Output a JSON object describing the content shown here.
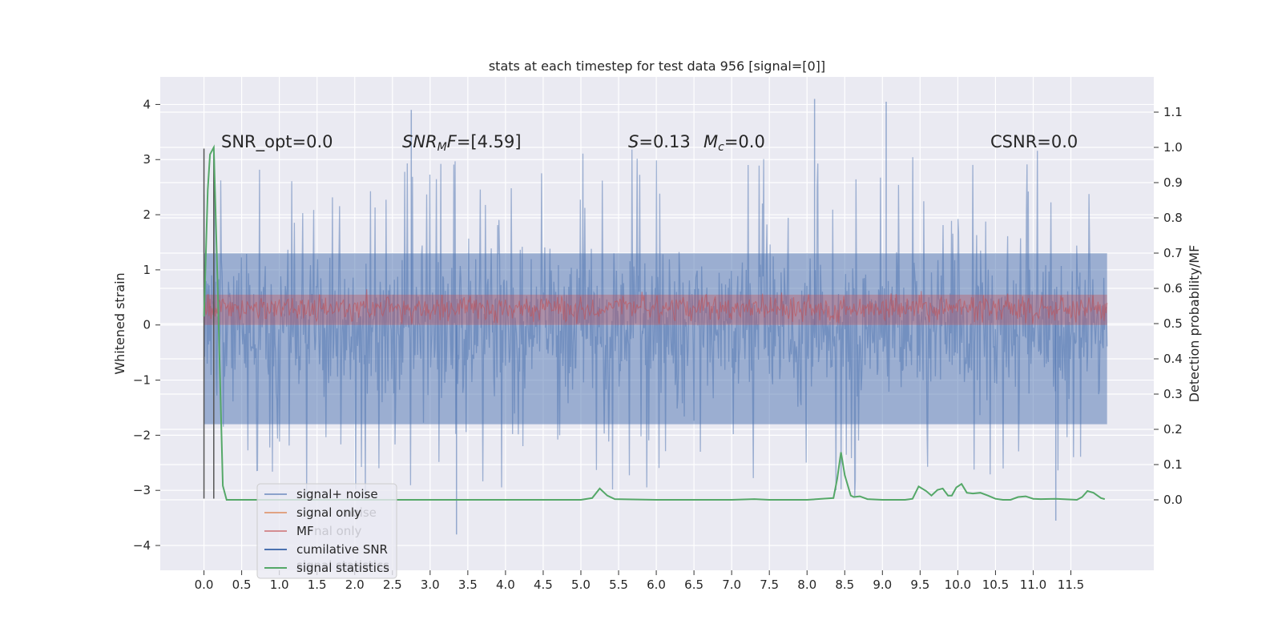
{
  "chart_data": {
    "type": "line",
    "title": "stats at each timestep for test data 956 [signal=[0]]",
    "xlabel": "",
    "ylabel": "Whitened strain",
    "y2label": "Detection probability/MF",
    "xlim": [
      -0.58,
      12.6
    ],
    "ylim": [
      -4.45,
      4.5
    ],
    "y2lim": [
      -0.2,
      1.2
    ],
    "grid": true,
    "background": "#eaeaf2",
    "x_ticks": [
      "0.0",
      "0.5",
      "1.0",
      "1.5",
      "2.0",
      "2.5",
      "3.0",
      "3.5",
      "4.0",
      "4.5",
      "5.0",
      "5.5",
      "6.0",
      "6.5",
      "7.0",
      "7.5",
      "8.0",
      "8.5",
      "9.0",
      "9.5",
      "10.0",
      "10.5",
      "11.0",
      "11.5"
    ],
    "y_ticks": [
      "4",
      "3",
      "2",
      "1",
      "0",
      "−1",
      "−2",
      "−3",
      "−4"
    ],
    "y2_ticks": [
      "1.1",
      "1.0",
      "0.9",
      "0.8",
      "0.7",
      "0.6",
      "0.5",
      "0.4",
      "0.3",
      "0.2",
      "0.1",
      "0.0"
    ],
    "annotations": [
      {
        "text": "SNR_opt=0.0",
        "x": 0.2,
        "y": 3.2
      },
      {
        "text": "SNR_MF=[4.59]",
        "x": 2.6,
        "y": 3.2
      },
      {
        "text": "S=0.13",
        "x": 5.6,
        "y": 3.2
      },
      {
        "text": "M_c=0.0",
        "x": 6.6,
        "y": 3.2
      },
      {
        "text": "CSNR=0.0",
        "x": 10.4,
        "y": 3.2
      }
    ],
    "legend": {
      "placement": "lower-left",
      "entries": [
        "signal+ noise",
        "signal only",
        "MF",
        "cumilative SNR",
        "signal statistics"
      ],
      "ghost_text": [
        "noise",
        "nal only",
        "signal statistics"
      ]
    },
    "colors": {
      "signal_noise": "#4c72b0",
      "signal_only": "#dd8452",
      "mf": "#c44e52",
      "cumulative_snr": "#4c72b0",
      "signal_statistics": "#55a868",
      "markers": "#555555"
    },
    "series": [
      {
        "name": "signal+ noise",
        "axis": "left",
        "style": "dense noise band",
        "x_range": [
          0.0,
          11.98
        ],
        "core_band": [
          -1.8,
          1.3
        ],
        "spike_max": 4.1,
        "spike_min": -3.8,
        "notable_peaks": [
          {
            "x": 2.75,
            "y": 3.9
          },
          {
            "x": 8.1,
            "y": 4.1
          },
          {
            "x": 9.05,
            "y": 4.05
          },
          {
            "x": 3.35,
            "y": -3.8
          },
          {
            "x": 11.3,
            "y": -3.55
          }
        ]
      },
      {
        "name": "MF",
        "axis": "left",
        "style": "dense noise band",
        "x_range": [
          0.0,
          11.98
        ],
        "core_band": [
          0.0,
          0.55
        ],
        "spike_max": 0.85
      },
      {
        "name": "signal statistics",
        "axis": "right",
        "x": [
          0.0,
          0.05,
          0.08,
          0.13,
          0.18,
          0.25,
          0.3,
          1.0,
          2.0,
          3.0,
          4.0,
          5.0,
          5.15,
          5.25,
          5.35,
          5.45,
          6.0,
          7.0,
          7.3,
          7.5,
          8.0,
          8.35,
          8.4,
          8.45,
          8.5,
          8.58,
          8.62,
          8.7,
          8.8,
          9.0,
          9.3,
          9.4,
          9.48,
          9.58,
          9.65,
          9.73,
          9.8,
          9.87,
          9.92,
          9.98,
          10.05,
          10.12,
          10.2,
          10.3,
          10.4,
          10.5,
          10.6,
          10.7,
          10.8,
          10.9,
          11.0,
          11.1,
          11.3,
          11.5,
          11.58,
          11.65,
          11.72,
          11.8,
          11.9,
          11.95
        ],
        "y": [
          0.52,
          0.88,
          0.98,
          1.0,
          0.62,
          0.04,
          0.0,
          0.0,
          0.0,
          0.0,
          0.0,
          0.0,
          0.005,
          0.032,
          0.012,
          0.002,
          0.0,
          0.0,
          0.002,
          0.0,
          0.0,
          0.005,
          0.06,
          0.135,
          0.07,
          0.012,
          0.008,
          0.01,
          0.002,
          0.0,
          0.0,
          0.003,
          0.038,
          0.025,
          0.012,
          0.028,
          0.032,
          0.012,
          0.012,
          0.035,
          0.045,
          0.02,
          0.018,
          0.02,
          0.012,
          0.003,
          0.0,
          0.0,
          0.008,
          0.01,
          0.003,
          0.002,
          0.003,
          0.001,
          0.0,
          0.008,
          0.025,
          0.02,
          0.005,
          0.002
        ]
      }
    ],
    "vertical_markers": [
      {
        "x": 0.0,
        "y_from": -3.15,
        "y_to": 3.2
      },
      {
        "x": 0.13,
        "y_from": -3.15,
        "y_to": 3.15
      }
    ]
  }
}
